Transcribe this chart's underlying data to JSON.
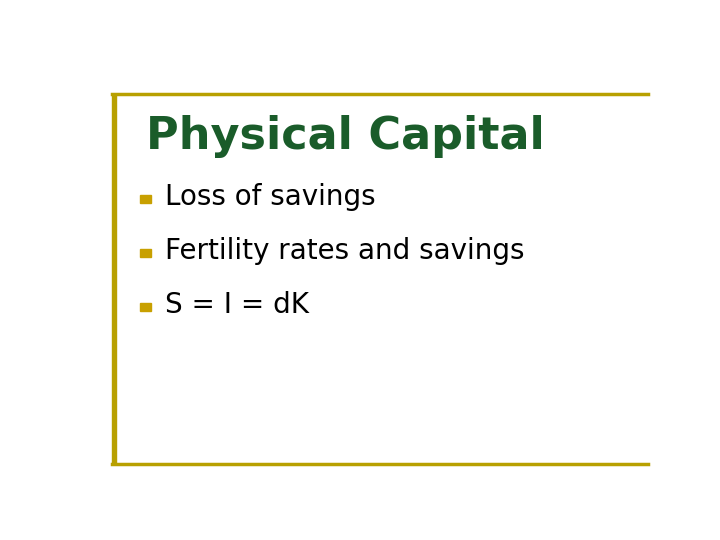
{
  "title": "Physical Capital",
  "title_color": "#1a5c2a",
  "title_fontsize": 32,
  "title_fontweight": "bold",
  "background_color": "#ffffff",
  "border_color": "#b8a000",
  "left_bar_color": "#b8a000",
  "bullet_color": "#c8a000",
  "bullet_items": [
    "Loss of savings",
    "Fertility rates and savings",
    "S = I = dK"
  ],
  "bullet_fontsize": 20,
  "text_color": "#000000"
}
